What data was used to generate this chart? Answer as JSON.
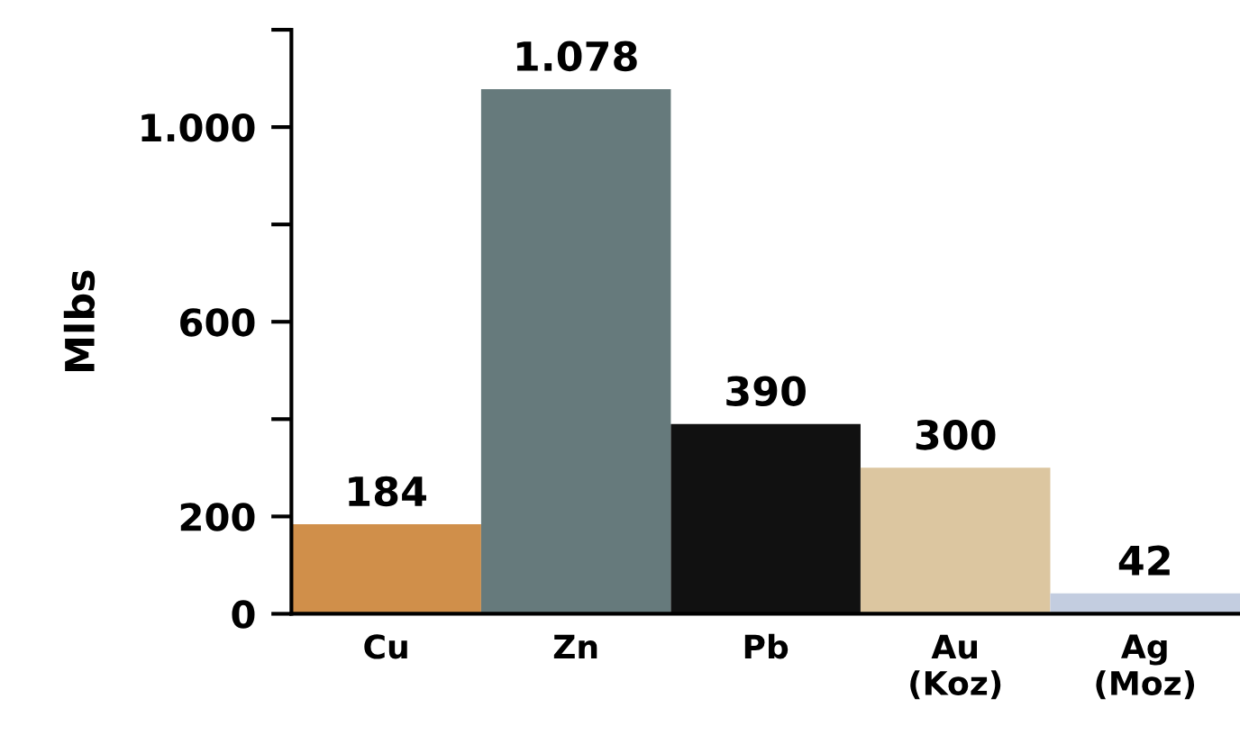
{
  "chart_data": {
    "type": "bar",
    "ylabel": "Mlbs",
    "categories": [
      "Cu",
      "Zn",
      "Pb",
      "Au\n(Koz)",
      "Ag\n(Moz)"
    ],
    "values": [
      184,
      1078,
      390,
      300,
      42
    ],
    "value_labels": [
      "184",
      "1.078",
      "390",
      "300",
      "42"
    ],
    "colors": [
      "#d08f4a",
      "#667a7c",
      "#111111",
      "#dcc6a0",
      "#c3cde0"
    ],
    "ylim": [
      0,
      1200
    ],
    "yticks": [
      0,
      200,
      {
        "value": 400,
        "label": null
      },
      600,
      {
        "value": 800,
        "label": null
      },
      {
        "value": 1000,
        "label": "1.000"
      },
      {
        "value": 1200,
        "label": null
      }
    ],
    "grid": false,
    "legend": false
  }
}
